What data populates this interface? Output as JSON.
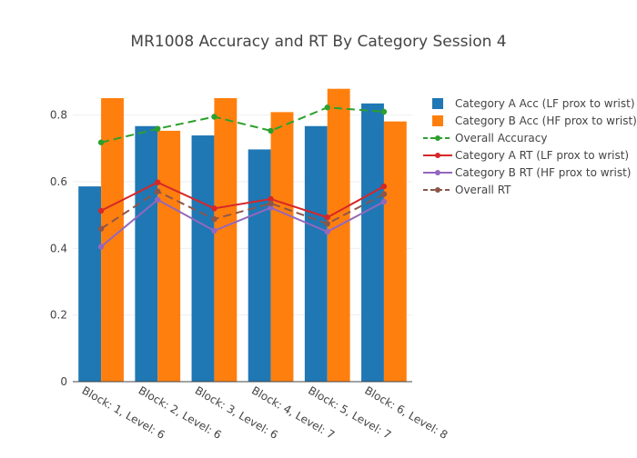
{
  "chart_data": {
    "type": "bar",
    "title": "MR1008 Accuracy and RT By Category Session 4",
    "xlabel": "",
    "ylabel": "",
    "ylim": [
      0,
      0.9
    ],
    "yticks": [
      0,
      0.2,
      0.4,
      0.6,
      0.8
    ],
    "ytick_labels": [
      "0",
      "0.2",
      "0.4",
      "0.6",
      "0.8"
    ],
    "categories": [
      "Block: 1, Level: 6",
      "Block: 2, Level: 6",
      "Block: 3, Level: 6",
      "Block: 4, Level: 7",
      "Block: 5, Level: 7",
      "Block: 6, Level: 8"
    ],
    "grid": true,
    "legend_position": "top-right",
    "series": [
      {
        "name": "Category A Acc (LF prox to wrist)",
        "kind": "bar",
        "color": "#1f77b4",
        "values": [
          0.586,
          0.767,
          0.739,
          0.697,
          0.767,
          0.835
        ]
      },
      {
        "name": "Category B Acc (HF prox to wrist)",
        "kind": "bar",
        "color": "#ff7f0e",
        "values": [
          0.851,
          0.753,
          0.851,
          0.809,
          0.879,
          0.781
        ]
      },
      {
        "name": "Overall Accuracy",
        "kind": "line",
        "dash": true,
        "color": "#2ca02c",
        "values": [
          0.718,
          0.759,
          0.795,
          0.753,
          0.823,
          0.81
        ]
      },
      {
        "name": "Category A RT (LF prox to wrist)",
        "kind": "line",
        "dash": false,
        "color": "#d62728",
        "values": [
          0.513,
          0.598,
          0.52,
          0.548,
          0.493,
          0.586
        ]
      },
      {
        "name": "Category B RT (HF prox to wrist)",
        "kind": "line",
        "dash": false,
        "color": "#9467bd",
        "values": [
          0.405,
          0.546,
          0.453,
          0.522,
          0.45,
          0.54
        ]
      },
      {
        "name": "Overall RT",
        "kind": "line",
        "dash": true,
        "color": "#8c564b",
        "values": [
          0.459,
          0.571,
          0.488,
          0.535,
          0.474,
          0.563
        ]
      }
    ]
  }
}
